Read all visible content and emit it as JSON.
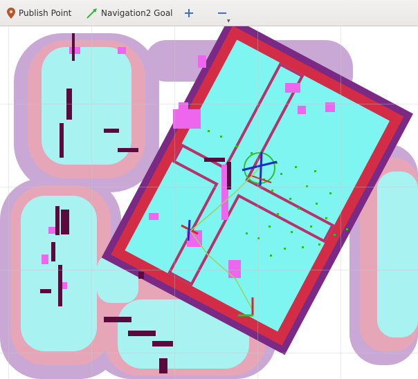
{
  "toolbar": {
    "publish_point_label": "Publish Point",
    "publish_point_icon": "map-marker-icon",
    "navigation_goal_label": "Navigation2 Goal",
    "navigation_goal_icon": "green-arrow-icon",
    "zoom_in_icon": "plus-icon",
    "zoom_out_icon": "minus-icon"
  },
  "colors": {
    "free_space": "#ffffff",
    "inflation_far": "#c9a8d6",
    "inflation_mid": "#e6a6b8",
    "inflation_cyan": "#a8f2f2",
    "local_costmap": "#7ef5f0",
    "lethal": "#5a0a3c",
    "inscribed": "#ee66ee",
    "costmap_edge_red": "#d22c46",
    "costmap_edge_purple": "#7a2a84",
    "particles": "#2fbf2f",
    "path": "#a0d060"
  }
}
